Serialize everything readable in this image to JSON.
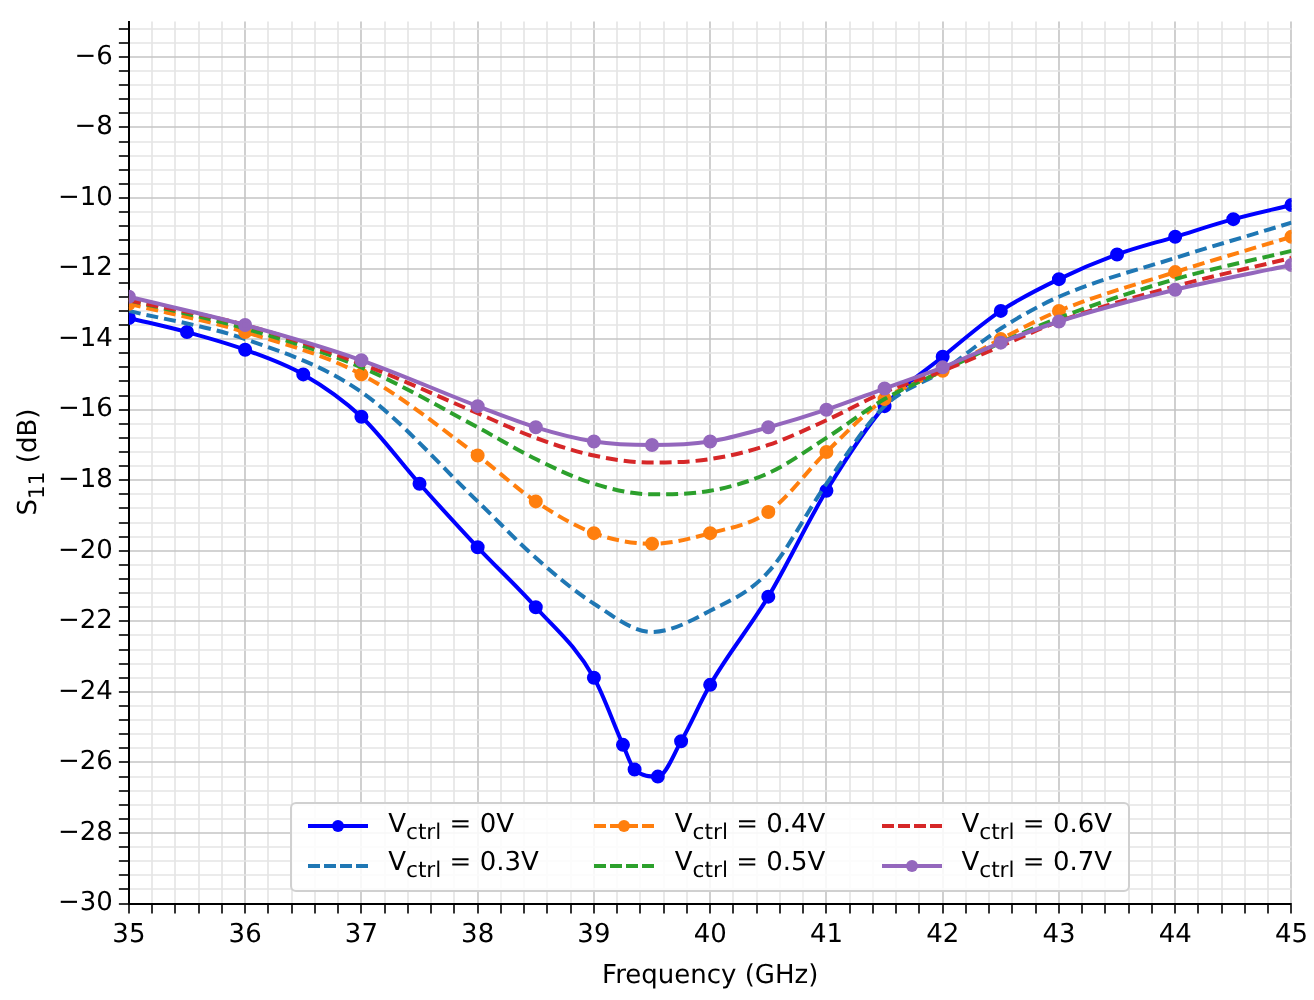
{
  "chart_data": {
    "type": "line",
    "xlabel": "Frequency (GHz)",
    "ylabel": "S$_{11}$ (dB)",
    "xlim": [
      35,
      45
    ],
    "ylim": [
      -30,
      -5
    ],
    "xticks": [
      35,
      {
        "value": 35.2,
        "label": null
      },
      {
        "value": 35.4,
        "label": null
      },
      {
        "value": 35.6,
        "label": null
      },
      {
        "value": 35.8,
        "label": null
      },
      36,
      {
        "value": 36.2,
        "label": null
      },
      {
        "value": 36.4,
        "label": null
      },
      {
        "value": 36.6,
        "label": null
      },
      {
        "value": 36.8,
        "label": null
      },
      37,
      {
        "value": 37.2,
        "label": null
      },
      {
        "value": 37.4,
        "label": null
      },
      {
        "value": 37.6,
        "label": null
      },
      {
        "value": 37.8,
        "label": null
      },
      38,
      {
        "value": 38.2,
        "label": null
      },
      {
        "value": 38.4,
        "label": null
      },
      {
        "value": 38.6,
        "label": null
      },
      {
        "value": 38.8,
        "label": null
      },
      39,
      {
        "value": 39.2,
        "label": null
      },
      {
        "value": 39.4,
        "label": null
      },
      {
        "value": 39.6,
        "label": null
      },
      {
        "value": 39.8,
        "label": null
      },
      40,
      {
        "value": 40.2,
        "label": null
      },
      {
        "value": 40.4,
        "label": null
      },
      {
        "value": 40.6,
        "label": null
      },
      {
        "value": 40.8,
        "label": null
      },
      41,
      {
        "value": 41.2,
        "label": null
      },
      {
        "value": 41.4,
        "label": null
      },
      {
        "value": 41.6,
        "label": null
      },
      {
        "value": 41.8,
        "label": null
      },
      42,
      {
        "value": 42.2,
        "label": null
      },
      {
        "value": 42.4,
        "label": null
      },
      {
        "value": 42.6,
        "label": null
      },
      {
        "value": 42.8,
        "label": null
      },
      43,
      {
        "value": 43.2,
        "label": null
      },
      {
        "value": 43.4,
        "label": null
      },
      {
        "value": 43.6,
        "label": null
      },
      {
        "value": 43.8,
        "label": null
      },
      44,
      {
        "value": 44.2,
        "label": null
      },
      {
        "value": 44.4,
        "label": null
      },
      {
        "value": 44.6,
        "label": null
      },
      {
        "value": 44.8,
        "label": null
      },
      45
    ],
    "yticks": [
      -30,
      {
        "value": -29.6,
        "label": null
      },
      {
        "value": -29.2,
        "label": null
      },
      {
        "value": -28.8,
        "label": null
      },
      {
        "value": -28.4,
        "label": null
      },
      -28,
      {
        "value": -27.6,
        "label": null
      },
      {
        "value": -27.2,
        "label": null
      },
      {
        "value": -26.8,
        "label": null
      },
      {
        "value": -26.4,
        "label": null
      },
      -26,
      {
        "value": -25.6,
        "label": null
      },
      {
        "value": -25.2,
        "label": null
      },
      {
        "value": -24.8,
        "label": null
      },
      {
        "value": -24.4,
        "label": null
      },
      -24,
      {
        "value": -23.6,
        "label": null
      },
      {
        "value": -23.2,
        "label": null
      },
      {
        "value": -22.8,
        "label": null
      },
      {
        "value": -22.4,
        "label": null
      },
      -22,
      {
        "value": -21.6,
        "label": null
      },
      {
        "value": -21.2,
        "label": null
      },
      {
        "value": -20.8,
        "label": null
      },
      {
        "value": -20.4,
        "label": null
      },
      -20,
      {
        "value": -19.6,
        "label": null
      },
      {
        "value": -19.2,
        "label": null
      },
      {
        "value": -18.8,
        "label": null
      },
      {
        "value": -18.4,
        "label": null
      },
      -18,
      {
        "value": -17.6,
        "label": null
      },
      {
        "value": -17.2,
        "label": null
      },
      {
        "value": -16.8,
        "label": null
      },
      {
        "value": -16.4,
        "label": null
      },
      -16,
      {
        "value": -15.6,
        "label": null
      },
      {
        "value": -15.2,
        "label": null
      },
      {
        "value": -14.8,
        "label": null
      },
      {
        "value": -14.4,
        "label": null
      },
      -14,
      {
        "value": -13.6,
        "label": null
      },
      {
        "value": -13.2,
        "label": null
      },
      {
        "value": -12.8,
        "label": null
      },
      {
        "value": -12.4,
        "label": null
      },
      -12,
      {
        "value": -11.6,
        "label": null
      },
      {
        "value": -11.2,
        "label": null
      },
      {
        "value": -10.8,
        "label": null
      },
      {
        "value": -10.4,
        "label": null
      },
      -10,
      {
        "value": -9.6,
        "label": null
      },
      {
        "value": -9.2,
        "label": null
      },
      {
        "value": -8.8,
        "label": null
      },
      {
        "value": -8.4,
        "label": null
      },
      -8,
      {
        "value": -7.6,
        "label": null
      },
      {
        "value": -7.2,
        "label": null
      },
      {
        "value": -6.8,
        "label": null
      },
      {
        "value": -6.4,
        "label": null
      },
      -6,
      {
        "value": -5.6,
        "label": null
      },
      {
        "value": -5.2,
        "label": null
      }
    ],
    "grid": true,
    "legend": "bottom",
    "series": [
      {
        "name": "V$_{ctrl}$ = 0V",
        "color": "#0000ff",
        "marker": "circle",
        "line_style": "solid",
        "x": [
          35,
          35.5,
          36,
          36.5,
          37,
          37.5,
          38,
          38.5,
          39,
          39.25,
          39.35,
          39.55,
          39.75,
          40,
          40.5,
          41,
          41.5,
          42,
          42.5,
          43,
          43.5,
          44,
          44.5,
          45
        ],
        "values": [
          -13.4,
          -13.8,
          -14.3,
          -15.0,
          -16.2,
          -18.1,
          -19.9,
          -21.6,
          -23.6,
          -25.5,
          -26.2,
          -26.4,
          -25.4,
          -23.8,
          -21.3,
          -18.3,
          -15.9,
          -14.5,
          -13.2,
          -12.3,
          -11.6,
          -11.1,
          -10.6,
          -10.2
        ]
      },
      {
        "name": "V$_{ctrl}$ = 0.3V",
        "color": "#1f77b4",
        "marker": "none",
        "line_style": "dashed",
        "x": [
          35,
          36,
          37,
          38,
          38.5,
          39,
          39.5,
          40,
          40.5,
          41,
          41.5,
          42,
          42.5,
          43,
          44,
          45
        ],
        "values": [
          -13.2,
          -14.0,
          -15.5,
          -18.6,
          -20.2,
          -21.5,
          -22.3,
          -21.7,
          -20.6,
          -18.1,
          -15.9,
          -14.9,
          -13.7,
          -12.8,
          -11.7,
          -10.7
        ]
      },
      {
        "name": "V$_{ctrl}$ = 0.4V",
        "color": "#ff7f0e",
        "marker": "circle",
        "line_style": "dashed",
        "x": [
          35,
          36,
          37,
          38,
          38.5,
          39,
          39.5,
          40,
          40.5,
          41,
          41.5,
          42,
          42.5,
          43,
          44,
          45
        ],
        "values": [
          -13.0,
          -13.8,
          -15.0,
          -17.3,
          -18.6,
          -19.5,
          -19.8,
          -19.5,
          -18.9,
          -17.2,
          -15.7,
          -14.9,
          -14.0,
          -13.2,
          -12.1,
          -11.1
        ]
      },
      {
        "name": "V$_{ctrl}$ = 0.5V",
        "color": "#2ca02c",
        "marker": "none",
        "line_style": "dashed",
        "x": [
          35,
          36,
          37,
          38,
          38.5,
          39,
          39.5,
          40,
          40.5,
          41,
          41.5,
          42,
          42.5,
          43,
          44,
          45
        ],
        "values": [
          -12.9,
          -13.7,
          -14.8,
          -16.5,
          -17.4,
          -18.1,
          -18.4,
          -18.3,
          -17.8,
          -16.8,
          -15.7,
          -14.9,
          -14.1,
          -13.4,
          -12.3,
          -11.5
        ]
      },
      {
        "name": "V$_{ctrl}$ = 0.6V",
        "color": "#d62728",
        "marker": "none",
        "line_style": "dashed",
        "x": [
          35,
          36,
          37,
          38,
          38.5,
          39,
          39.5,
          40,
          40.5,
          41,
          41.5,
          42,
          42.5,
          43,
          44,
          45
        ],
        "values": [
          -12.9,
          -13.6,
          -14.7,
          -16.1,
          -16.8,
          -17.3,
          -17.5,
          -17.4,
          -17.0,
          -16.3,
          -15.5,
          -14.9,
          -14.2,
          -13.5,
          -12.5,
          -11.7
        ]
      },
      {
        "name": "V$_{ctrl}$ = 0.7V",
        "color": "#9467bd",
        "marker": "circle",
        "line_style": "solid",
        "x": [
          35,
          36,
          37,
          38,
          38.5,
          39,
          39.5,
          40,
          40.5,
          41,
          41.5,
          42,
          42.5,
          43,
          44,
          45
        ],
        "values": [
          -12.8,
          -13.6,
          -14.6,
          -15.9,
          -16.5,
          -16.9,
          -17.0,
          -16.9,
          -16.5,
          -16.0,
          -15.4,
          -14.8,
          -14.1,
          -13.5,
          -12.6,
          -11.9
        ]
      }
    ]
  }
}
